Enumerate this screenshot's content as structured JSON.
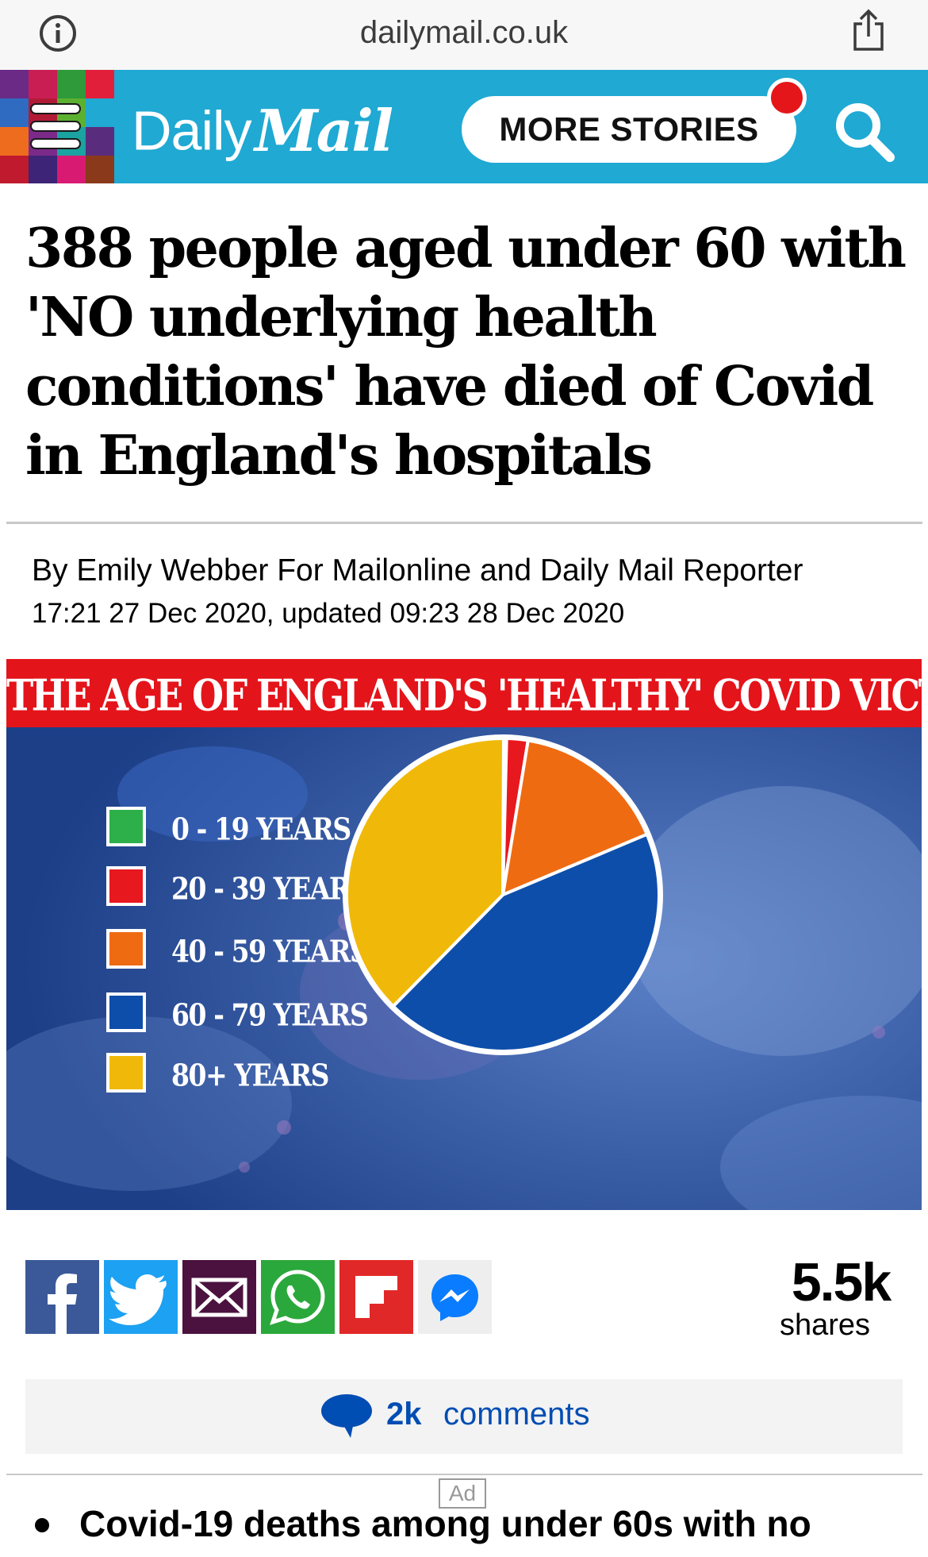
{
  "browser": {
    "url": "dailymail.co.uk",
    "icons": [
      "info-icon",
      "share-icon"
    ]
  },
  "header": {
    "logo_daily": "Daily",
    "logo_mail": "Mail",
    "more_stories_label": "MORE STORIES",
    "icons": [
      "menu-icon",
      "search-icon"
    ],
    "accent_color": "#1fa9d3",
    "notification_color": "#e4161a"
  },
  "article": {
    "headline": "388 people aged under 60 with 'NO underlying health conditions' have died of Covid in England's hospitals",
    "byline": "By Emily Webber For Mailonline and Daily Mail Reporter",
    "dateline": "17:21 27 Dec 2020, updated 09:23 28 Dec 2020"
  },
  "chart_data": {
    "type": "pie",
    "title": "THE AGE OF ENGLAND'S 'HEALTHY' COVID VICTIMS",
    "categories": [
      "0 - 19 YEARS",
      "20 - 39 YEARS",
      "40 - 59 YEARS",
      "60 - 79 YEARS",
      "80+ YEARS"
    ],
    "values": [
      0.3,
      2.2,
      16.1,
      43.7,
      37.7
    ],
    "colors": [
      "#2db04a",
      "#e8181f",
      "#ef6b12",
      "#0e4eab",
      "#f0b90a"
    ],
    "legend_placement": "left"
  },
  "share": {
    "count": "5.5k",
    "label": "shares",
    "buttons": [
      {
        "icon": "facebook-icon",
        "color": "#3b5998"
      },
      {
        "icon": "twitter-icon",
        "color": "#1da1f2"
      },
      {
        "icon": "email-icon",
        "color": "#4b123f"
      },
      {
        "icon": "whatsapp-icon",
        "color": "#2ba83c"
      },
      {
        "icon": "flipboard-icon",
        "color": "#e12828"
      },
      {
        "icon": "messenger-icon",
        "color": "#0a7cff"
      }
    ]
  },
  "comments": {
    "count": "2k",
    "label": "comments"
  },
  "ad": {
    "label": "Ad"
  },
  "related": {
    "bullet_text": "Covid-19 deaths among under 60s with no"
  }
}
